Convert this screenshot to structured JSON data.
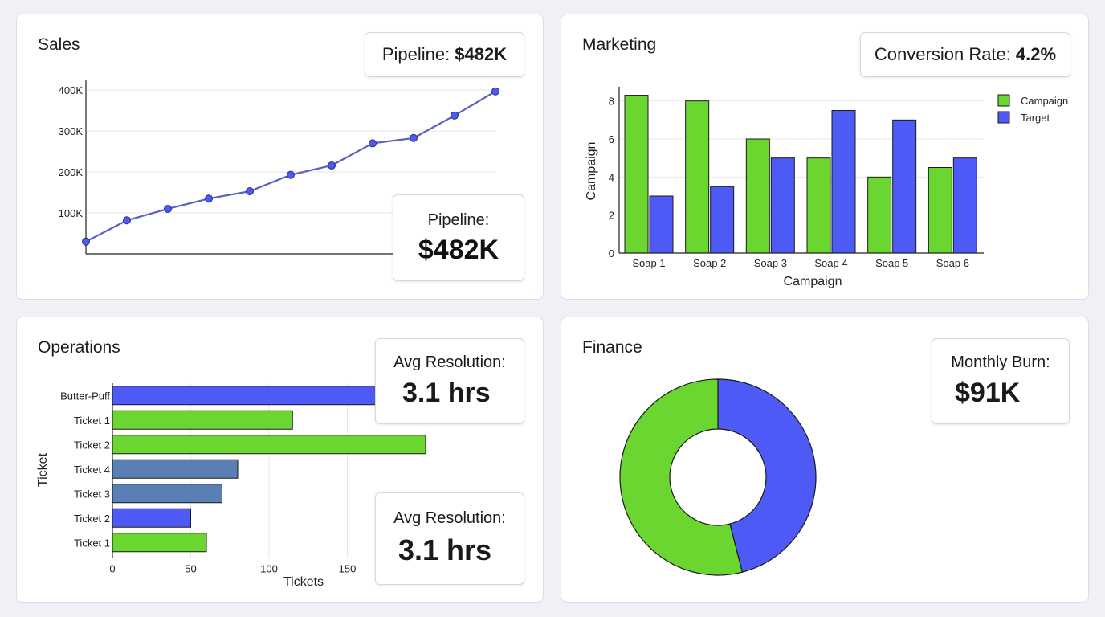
{
  "sales": {
    "title": "Sales",
    "kpi_top": {
      "label": "Pipeline:",
      "value": "$482K"
    },
    "kpi_box": {
      "label": "Pipeline:",
      "value": "$482K"
    }
  },
  "marketing": {
    "title": "Marketing",
    "kpi": {
      "label": "Conversion Rate:",
      "value": "4.2%"
    }
  },
  "operations": {
    "title": "Operations",
    "kpi_top": {
      "label": "Avg Resolution:",
      "value": "3.1 hrs"
    },
    "kpi_bottom": {
      "label": "Avg Resolution:",
      "value": "3.1 hrs"
    }
  },
  "finance": {
    "title": "Finance",
    "kpi": {
      "label": "Monthly Burn:",
      "value": "$91K"
    }
  },
  "colors": {
    "green": "#6ad62f",
    "blue": "#4d5af5",
    "steel": "#5a7fb5",
    "line": "#5a5fc4"
  },
  "chart_data": [
    {
      "id": "sales",
      "type": "line",
      "x": [
        1,
        2,
        3,
        4,
        5,
        6,
        7,
        8,
        9,
        10,
        11
      ],
      "values": [
        30,
        82,
        110,
        135,
        153,
        193,
        216,
        270,
        283,
        338,
        397
      ],
      "unit": "K",
      "ylim": [
        0,
        420
      ],
      "yticks": [
        100,
        200,
        300,
        400
      ],
      "ytick_labels": [
        "100K",
        "200K",
        "300K",
        "400K"
      ],
      "grid": true
    },
    {
      "id": "marketing",
      "type": "bar",
      "categories": [
        "Soap 1",
        "Soap 2",
        "Soap 3",
        "Soap 4",
        "Soap 5",
        "Soap 6"
      ],
      "series": [
        {
          "name": "Campaign",
          "values": [
            8.3,
            8.0,
            6.0,
            5.0,
            4.0,
            4.5
          ]
        },
        {
          "name": "Target",
          "values": [
            3.0,
            3.5,
            5.0,
            7.5,
            7.0,
            5.0
          ]
        }
      ],
      "xlabel": "Campaign",
      "ylabel": "Campaign",
      "ylim": [
        0,
        9
      ],
      "yticks": [
        0,
        2,
        4,
        6,
        8
      ],
      "legend": "top-right",
      "grid": true
    },
    {
      "id": "operations",
      "type": "bar",
      "orientation": "horizontal",
      "categories": [
        "Butter-Puff",
        "Ticket 1",
        "Ticket 2",
        "Ticket 4",
        "Ticket 3",
        "Ticket 2",
        "Ticket 1"
      ],
      "values": [
        178,
        115,
        200,
        80,
        70,
        50,
        60
      ],
      "bar_colors": [
        "blue",
        "green",
        "green",
        "steel",
        "steel",
        "blue",
        "green"
      ],
      "xlabel": "Tickets",
      "ylabel": "Ticket",
      "xlim": [
        0,
        200
      ],
      "xticks": [
        0,
        50,
        100,
        150
      ],
      "grid": true
    },
    {
      "id": "finance",
      "type": "pie",
      "donut": true,
      "slices": [
        {
          "value": 46,
          "color": "blue"
        },
        {
          "value": 54,
          "color": "green"
        }
      ]
    }
  ]
}
